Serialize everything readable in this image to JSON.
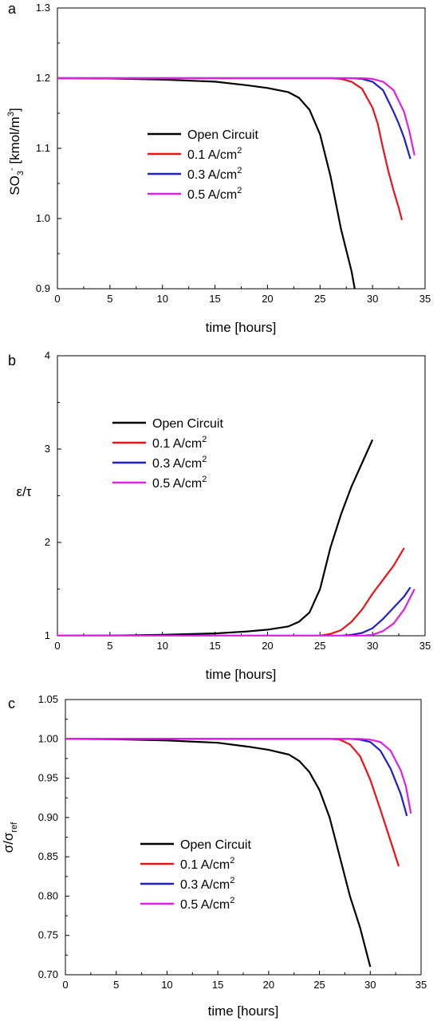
{
  "chart_data": [
    {
      "panel_label": "a",
      "type": "line",
      "xlabel": "time [hours]",
      "ylabel": "SO3 [kmol/m3]",
      "xlim": [
        0,
        35
      ],
      "ylim": [
        0.9,
        1.3
      ],
      "xticks": [
        0,
        5,
        10,
        15,
        20,
        25,
        30,
        35
      ],
      "yticks": [
        0.9,
        1.0,
        1.1,
        1.2,
        1.3
      ],
      "ytick_labels": [
        "0.9",
        "1.0",
        "1.1",
        "1.2",
        "1.3"
      ],
      "legend_position": "center",
      "series": [
        {
          "name": "Open Circuit",
          "color": "#000000",
          "x": [
            0,
            5,
            10,
            15,
            18,
            20,
            22,
            23,
            24,
            25,
            26,
            27,
            27.5,
            28,
            28.3
          ],
          "y": [
            1.2,
            1.1995,
            1.198,
            1.195,
            1.19,
            1.186,
            1.18,
            1.172,
            1.155,
            1.12,
            1.06,
            0.985,
            0.955,
            0.925,
            0.9
          ]
        },
        {
          "name": "0.1 A/cm2",
          "color": "#e8141a",
          "x": [
            0,
            10,
            20,
            26,
            27,
            28,
            29,
            30,
            30.5,
            31,
            31.5,
            32,
            32.5,
            32.8
          ],
          "y": [
            1.2,
            1.2,
            1.2,
            1.2,
            1.199,
            1.195,
            1.185,
            1.158,
            1.135,
            1.1,
            1.068,
            1.04,
            1.015,
            0.998
          ]
        },
        {
          "name": "0.3 A/cm2",
          "color": "#1f1fcc",
          "x": [
            0,
            10,
            20,
            28,
            29,
            30,
            31,
            32,
            32.5,
            33,
            33.6
          ],
          "y": [
            1.2,
            1.2,
            1.2,
            1.2,
            1.199,
            1.195,
            1.183,
            1.152,
            1.135,
            1.115,
            1.085
          ]
        },
        {
          "name": "0.5 A/cm2",
          "color": "#e020e0",
          "x": [
            0,
            10,
            20,
            29,
            30,
            31,
            32,
            33,
            33.5,
            34
          ],
          "y": [
            1.2,
            1.2,
            1.2,
            1.2,
            1.199,
            1.195,
            1.183,
            1.152,
            1.125,
            1.09
          ]
        }
      ]
    },
    {
      "panel_label": "b",
      "type": "line",
      "xlabel": "time [hours]",
      "ylabel": "ε/τ",
      "xlim": [
        0,
        35
      ],
      "ylim": [
        1,
        4
      ],
      "xticks": [
        0,
        5,
        10,
        15,
        20,
        25,
        30,
        35
      ],
      "yticks": [
        1,
        2,
        3,
        4
      ],
      "ytick_labels": [
        "1",
        "2",
        "3",
        "4"
      ],
      "legend_position": "top-left",
      "series": [
        {
          "name": "Open Circuit",
          "color": "#000000",
          "x": [
            0,
            5,
            10,
            15,
            18,
            20,
            22,
            23,
            24,
            25,
            26,
            27,
            28,
            29,
            30
          ],
          "y": [
            1.0,
            1.002,
            1.01,
            1.025,
            1.045,
            1.065,
            1.1,
            1.15,
            1.25,
            1.5,
            1.95,
            2.3,
            2.6,
            2.85,
            3.1
          ]
        },
        {
          "name": "0.1 A/cm2",
          "color": "#e8141a",
          "x": [
            0,
            10,
            20,
            25,
            26,
            27,
            28,
            29,
            30,
            31,
            32,
            33
          ],
          "y": [
            1.0,
            1.0,
            1.0,
            1.0,
            1.02,
            1.06,
            1.15,
            1.28,
            1.45,
            1.6,
            1.75,
            1.94
          ]
        },
        {
          "name": "0.3 A/cm2",
          "color": "#1f1fcc",
          "x": [
            0,
            10,
            20,
            27,
            28,
            29,
            30,
            31,
            32,
            33,
            33.6
          ],
          "y": [
            1.0,
            1.0,
            1.0,
            1.0,
            1.01,
            1.03,
            1.08,
            1.18,
            1.3,
            1.42,
            1.52
          ]
        },
        {
          "name": "0.5 A/cm2",
          "color": "#e020e0",
          "x": [
            0,
            10,
            20,
            29,
            30,
            31,
            32,
            33,
            34
          ],
          "y": [
            1.0,
            1.0,
            1.0,
            1.0,
            1.01,
            1.05,
            1.13,
            1.28,
            1.5
          ]
        }
      ]
    },
    {
      "panel_label": "c",
      "type": "line",
      "xlabel": "time [hours]",
      "ylabel": "σ/σref",
      "xlim": [
        0,
        35
      ],
      "ylim": [
        0.7,
        1.05
      ],
      "xticks": [
        0,
        5,
        10,
        15,
        20,
        25,
        30,
        35
      ],
      "yticks": [
        0.7,
        0.75,
        0.8,
        0.85,
        0.9,
        0.95,
        1.0,
        1.05
      ],
      "ytick_labels": [
        "0.70",
        "0.75",
        "0.80",
        "0.85",
        "0.90",
        "0.95",
        "1.00",
        "1.05"
      ],
      "legend_position": "bottom-left",
      "series": [
        {
          "name": "Open Circuit",
          "color": "#000000",
          "x": [
            0,
            5,
            10,
            15,
            18,
            20,
            22,
            23,
            24,
            25,
            26,
            27,
            28,
            29,
            29.5,
            30
          ],
          "y": [
            1.0,
            0.9995,
            0.998,
            0.995,
            0.99,
            0.986,
            0.98,
            0.972,
            0.958,
            0.935,
            0.9,
            0.85,
            0.8,
            0.76,
            0.735,
            0.71
          ]
        },
        {
          "name": "0.1 A/cm2",
          "color": "#e8141a",
          "x": [
            0,
            10,
            20,
            26,
            27,
            28,
            29,
            30,
            31,
            32,
            32.8
          ],
          "y": [
            1.0,
            1.0,
            1.0,
            1.0,
            0.999,
            0.993,
            0.978,
            0.948,
            0.91,
            0.87,
            0.838
          ]
        },
        {
          "name": "0.3 A/cm2",
          "color": "#1f1fcc",
          "x": [
            0,
            10,
            20,
            28,
            29,
            30,
            31,
            32,
            33,
            33.6
          ],
          "y": [
            1.0,
            1.0,
            1.0,
            1.0,
            0.999,
            0.996,
            0.985,
            0.962,
            0.93,
            0.902
          ]
        },
        {
          "name": "0.5 A/cm2",
          "color": "#e020e0",
          "x": [
            0,
            10,
            20,
            29,
            30,
            31,
            32,
            33,
            33.5,
            34
          ],
          "y": [
            1.0,
            1.0,
            1.0,
            1.0,
            0.999,
            0.996,
            0.985,
            0.96,
            0.94,
            0.905
          ]
        }
      ]
    }
  ]
}
